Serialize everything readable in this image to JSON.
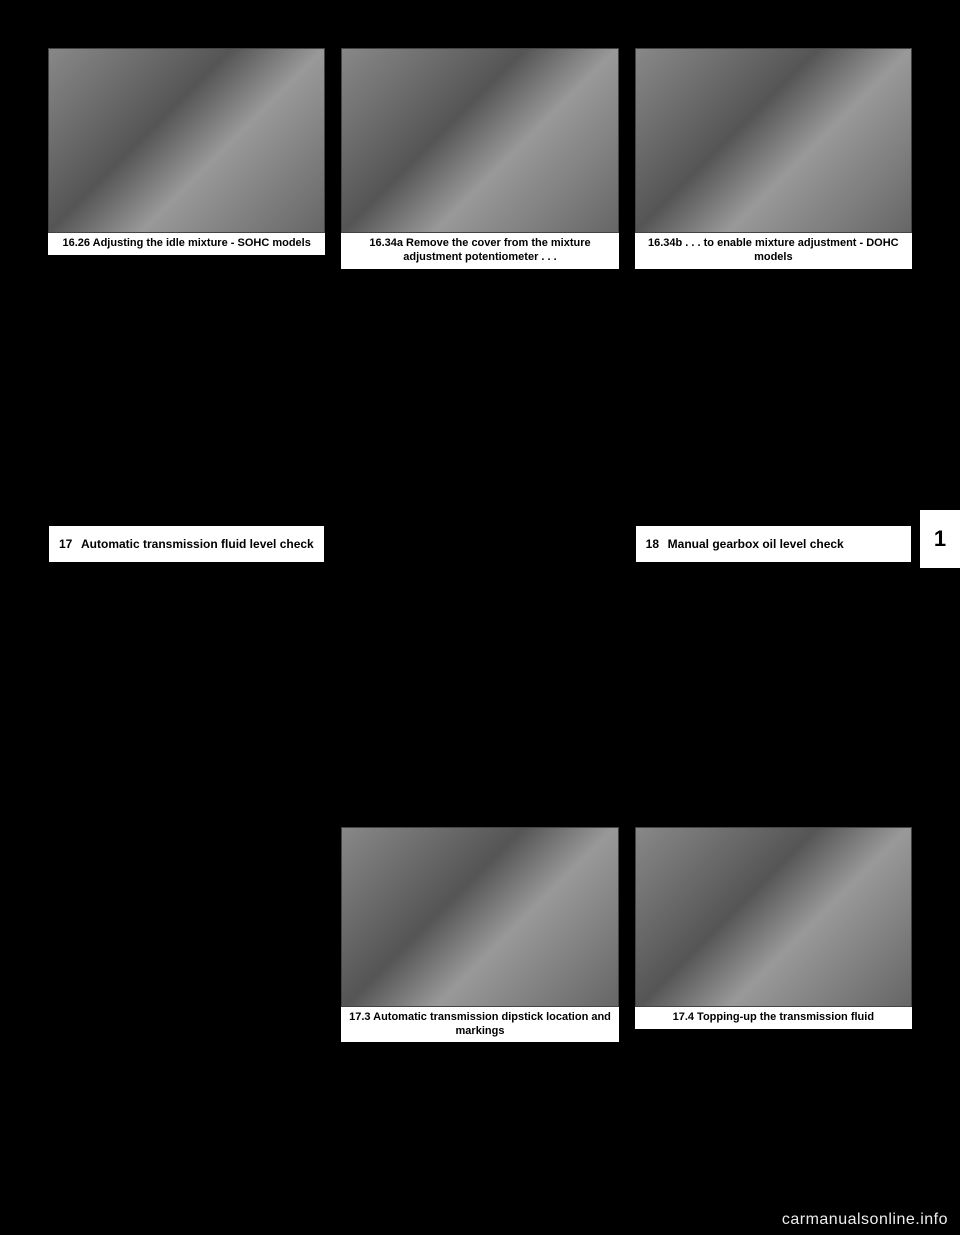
{
  "figures": {
    "top_left": {
      "caption": "16.26 Adjusting the idle mixture - SOHC models"
    },
    "top_mid": {
      "caption": "16.34a Remove the cover from the mixture adjustment potentiometer . . ."
    },
    "top_right": {
      "caption": "16.34b . . . to enable mixture adjustment - DOHC models"
    },
    "bottom_mid": {
      "caption": "17.3 Automatic transmission dipstick location and markings"
    },
    "bottom_right": {
      "caption": "17.4 Topping-up the transmission fluid"
    }
  },
  "sections": {
    "s17": {
      "num": "17",
      "title": "Automatic transmission fluid level check"
    },
    "s18": {
      "num": "18",
      "title": "Manual gearbox oil level check"
    }
  },
  "tab": {
    "label": "1"
  },
  "watermark": "carmanualsonline.info"
}
